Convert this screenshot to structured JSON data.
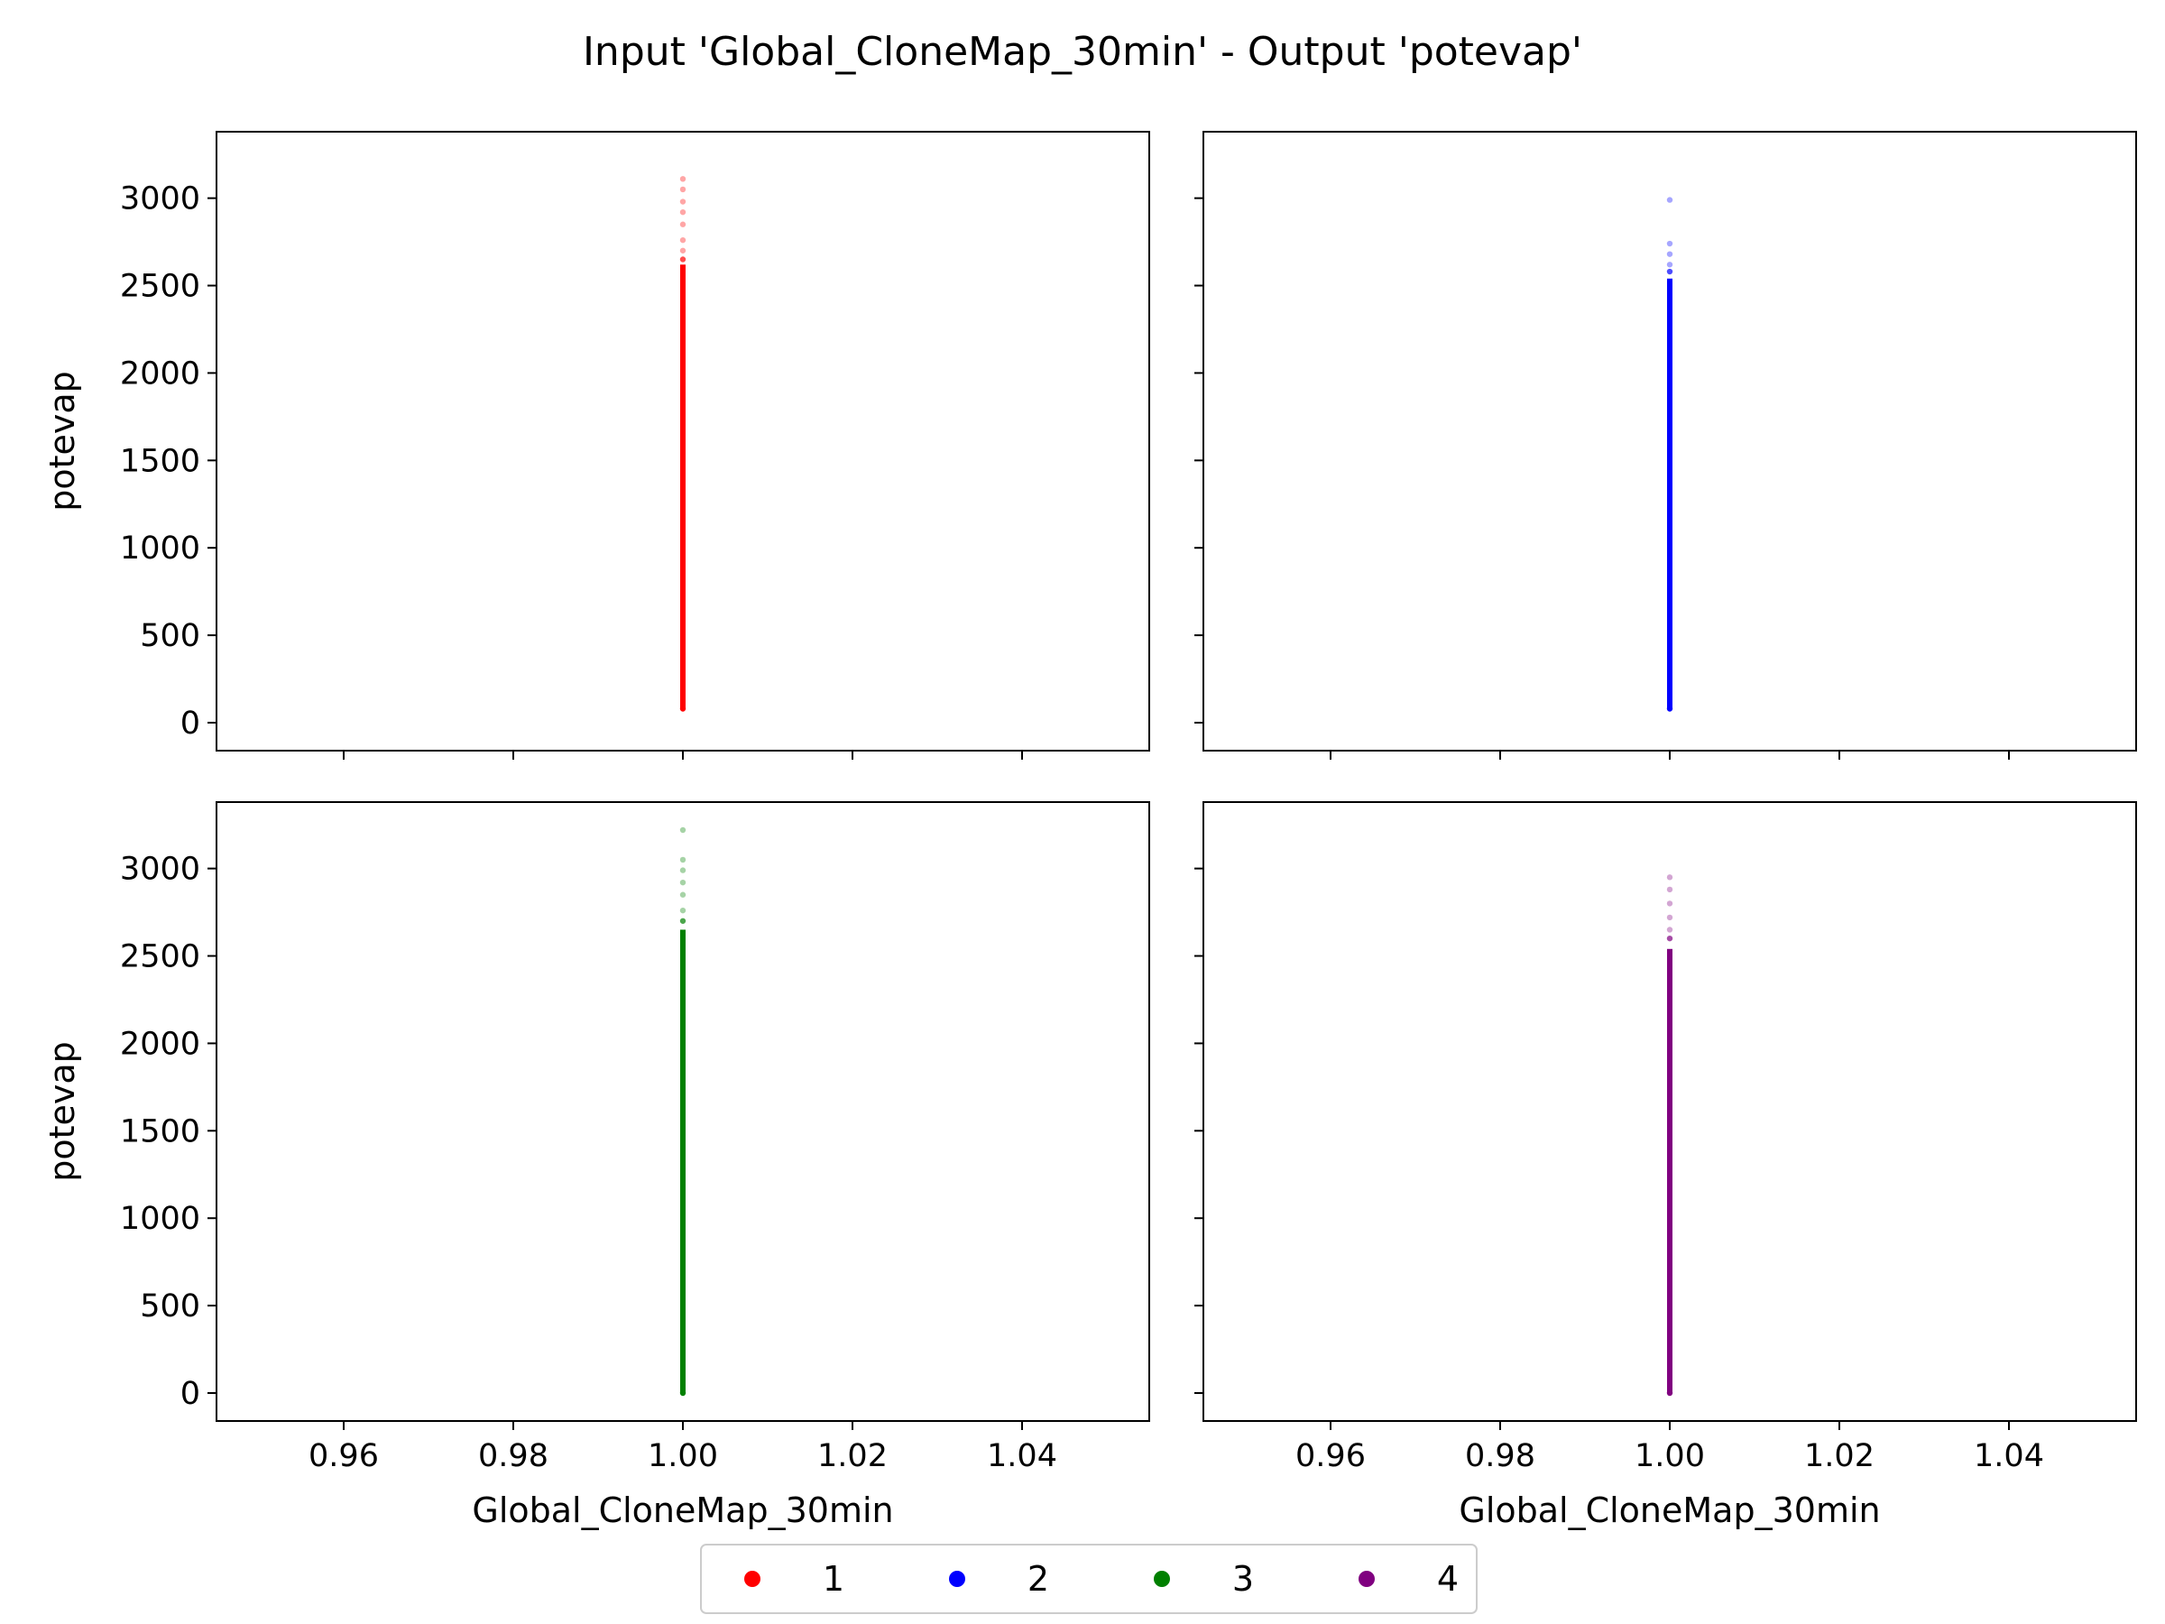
{
  "figure": {
    "title": "Input 'Global_CloneMap_30min' - Output 'potevap'"
  },
  "legend": {
    "placement": "bottom-center",
    "entries": [
      {
        "label": "1",
        "color": "#ff0000"
      },
      {
        "label": "2",
        "color": "#0000ff"
      },
      {
        "label": "3",
        "color": "#008000"
      },
      {
        "label": "4",
        "color": "#800080"
      }
    ]
  },
  "chart_data": [
    {
      "type": "scatter",
      "panel": "top-left",
      "series": [
        {
          "name": "1",
          "color": "#ff0000",
          "x": 1.0,
          "y_min": 80,
          "y_dense_max": 2620,
          "y_sparse": [
            2650,
            2700,
            2760,
            2850,
            2920,
            2980,
            3050,
            3110
          ]
        }
      ],
      "xlabel": "",
      "ylabel": "potevap",
      "xlim": [
        0.945,
        1.055
      ],
      "ylim": [
        -160,
        3380
      ],
      "xticks": [
        "0.96",
        "0.98",
        "1.00",
        "1.02",
        "1.04"
      ],
      "yticks": [
        "0",
        "500",
        "1000",
        "1500",
        "2000",
        "2500",
        "3000"
      ],
      "show_x_tick_labels": false,
      "show_y_tick_labels": true
    },
    {
      "type": "scatter",
      "panel": "top-right",
      "series": [
        {
          "name": "2",
          "color": "#0000ff",
          "x": 1.0,
          "y_min": 80,
          "y_dense_max": 2540,
          "y_sparse": [
            2580,
            2620,
            2680,
            2740,
            2990
          ]
        }
      ],
      "xlabel": "",
      "ylabel": "",
      "xlim": [
        0.945,
        1.055
      ],
      "ylim": [
        -160,
        3380
      ],
      "xticks": [
        "0.96",
        "0.98",
        "1.00",
        "1.02",
        "1.04"
      ],
      "yticks": [
        "0",
        "500",
        "1000",
        "1500",
        "2000",
        "2500",
        "3000"
      ],
      "show_x_tick_labels": false,
      "show_y_tick_labels": false
    },
    {
      "type": "scatter",
      "panel": "bottom-left",
      "series": [
        {
          "name": "3",
          "color": "#008000",
          "x": 1.0,
          "y_min": 0,
          "y_dense_max": 2650,
          "y_sparse": [
            2700,
            2760,
            2850,
            2920,
            2990,
            3050,
            3220
          ]
        }
      ],
      "xlabel": "Global_CloneMap_30min",
      "ylabel": "potevap",
      "xlim": [
        0.945,
        1.055
      ],
      "ylim": [
        -160,
        3380
      ],
      "xticks": [
        "0.96",
        "0.98",
        "1.00",
        "1.02",
        "1.04"
      ],
      "yticks": [
        "0",
        "500",
        "1000",
        "1500",
        "2000",
        "2500",
        "3000"
      ],
      "show_x_tick_labels": true,
      "show_y_tick_labels": true
    },
    {
      "type": "scatter",
      "panel": "bottom-right",
      "series": [
        {
          "name": "4",
          "color": "#800080",
          "x": 1.0,
          "y_min": 0,
          "y_dense_max": 2540,
          "y_sparse": [
            2600,
            2650,
            2720,
            2800,
            2880,
            2950
          ]
        }
      ],
      "xlabel": "Global_CloneMap_30min",
      "ylabel": "",
      "xlim": [
        0.945,
        1.055
      ],
      "ylim": [
        -160,
        3380
      ],
      "xticks": [
        "0.96",
        "0.98",
        "1.00",
        "1.02",
        "1.04"
      ],
      "yticks": [
        "0",
        "500",
        "1000",
        "1500",
        "2000",
        "2500",
        "3000"
      ],
      "show_x_tick_labels": true,
      "show_y_tick_labels": false
    }
  ]
}
